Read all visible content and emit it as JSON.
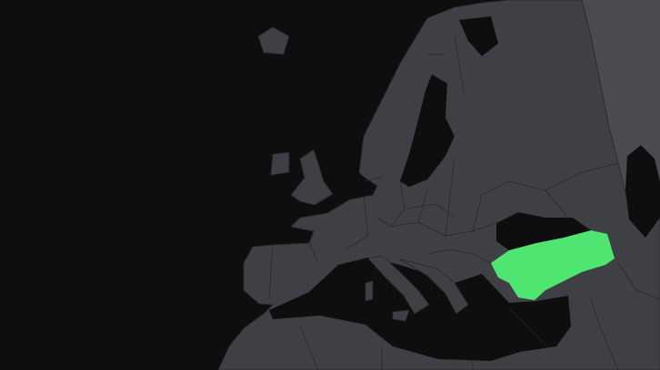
{
  "map": {
    "colors": {
      "ocean": "#0e0e0f",
      "land": "#3f4045",
      "land_far": "#4a4b50",
      "border": "#27282b",
      "highlight": "#4fe571"
    },
    "highlighted_region_color": "#4fe571"
  }
}
